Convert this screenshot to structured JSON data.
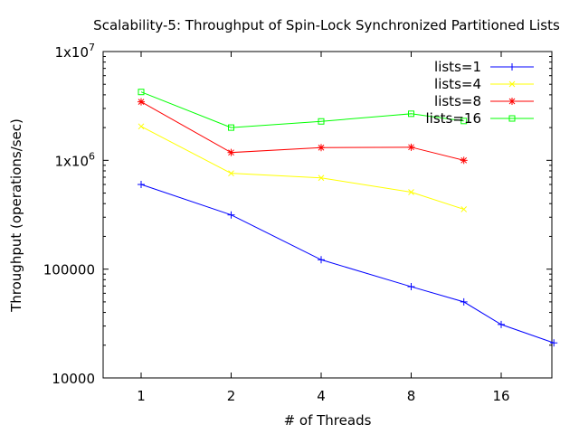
{
  "chart_data": {
    "type": "line",
    "title": "Scalability-5: Throughput of Spin-Lock Synchronized Partitioned Lists",
    "xlabel": "# of Threads",
    "ylabel": "Throughput (operations/sec)",
    "y_scale": "log",
    "ylim": [
      10000,
      10000000
    ],
    "x_scale": "log2",
    "x_ticks": [
      {
        "value": 1,
        "label": "1"
      },
      {
        "value": 2,
        "label": "2"
      },
      {
        "value": 4,
        "label": "4"
      },
      {
        "value": 8,
        "label": "8"
      },
      {
        "value": 16,
        "label": "16"
      }
    ],
    "y_ticks": [
      {
        "value": 10000000,
        "base": "1x10",
        "exp": "7"
      },
      {
        "value": 1000000,
        "base": "1x10",
        "exp": "6"
      },
      {
        "value": 100000,
        "base": "100000",
        "exp": ""
      },
      {
        "value": 10000,
        "base": "10000",
        "exp": ""
      }
    ],
    "grid": false,
    "legend_position": "top-right",
    "series": [
      {
        "name": "lists=1",
        "color": "#0000ff",
        "marker": "plus",
        "x": [
          1,
          2,
          4,
          8,
          12,
          16,
          24
        ],
        "y": [
          600000,
          315000,
          122000,
          69000,
          50000,
          31000,
          21000
        ]
      },
      {
        "name": "lists=4",
        "color": "#ffff00",
        "marker": "cross",
        "x": [
          1,
          2,
          4,
          8,
          12
        ],
        "y": [
          2050000,
          760000,
          690000,
          510000,
          355000
        ]
      },
      {
        "name": "lists=8",
        "color": "#ff0000",
        "marker": "star",
        "x": [
          1,
          2,
          4,
          8,
          12
        ],
        "y": [
          3450000,
          1180000,
          1310000,
          1320000,
          1000000
        ]
      },
      {
        "name": "lists=16",
        "color": "#00ff00",
        "marker": "square",
        "x": [
          1,
          2,
          4,
          8,
          12
        ],
        "y": [
          4250000,
          2000000,
          2280000,
          2680000,
          2300000
        ]
      }
    ]
  }
}
